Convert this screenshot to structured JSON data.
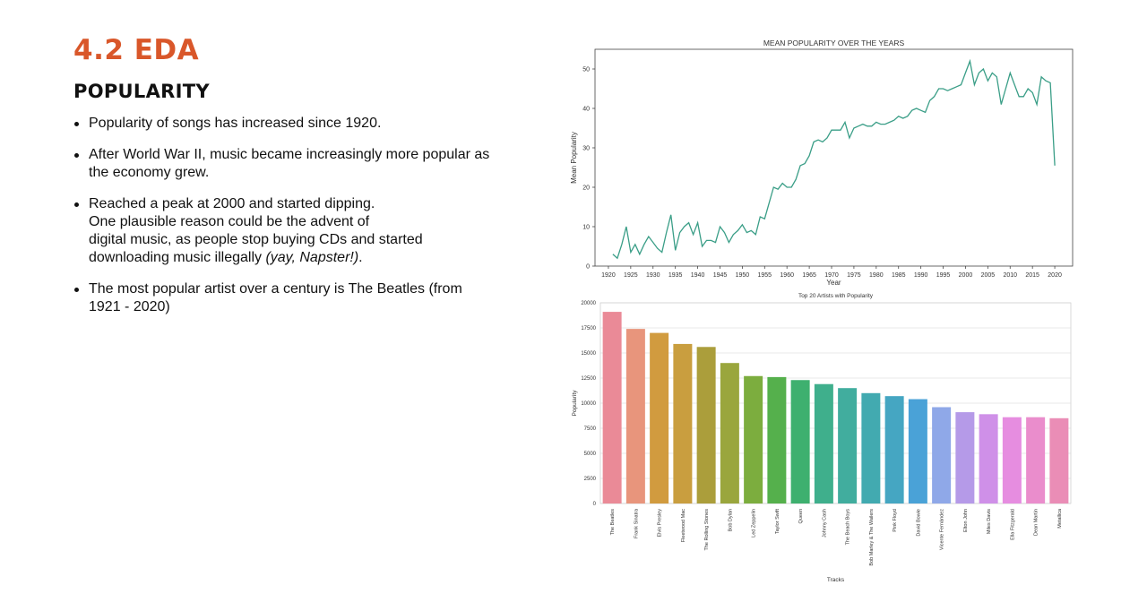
{
  "slide": {
    "heading": "4.2 EDA",
    "subheading": "POPULARITY",
    "bullets": {
      "b1": "Popularity of songs has increased since 1920.",
      "b2": "After World War II, music became increasingly more popular as the economy grew.",
      "b3_l1": "Reached a peak at 2000 and started dipping.",
      "b3_l2": "One plausible reason could be the advent of",
      "b3_l3": "digital music, as people stop buying CDs and started",
      "b3_l4a": "downloading music illegally ",
      "b3_l4b": "(yay, Napster!)",
      "b3_l4c": ".",
      "b4": "The most popular artist over a century is The Beatles (from 1921 - 2020)"
    }
  },
  "chart_data": [
    {
      "type": "line",
      "title": "MEAN POPULARITY OVER THE YEARS",
      "xlabel": "Year",
      "ylabel": "Mean Popularity",
      "xlim": [
        1917,
        2024
      ],
      "ylim": [
        0,
        55
      ],
      "xticks": [
        1920,
        1925,
        1930,
        1935,
        1940,
        1945,
        1950,
        1955,
        1960,
        1965,
        1970,
        1975,
        1980,
        1985,
        1990,
        1995,
        2000,
        2005,
        2010,
        2015,
        2020
      ],
      "yticks": [
        0,
        10,
        20,
        30,
        40,
        50
      ],
      "grid": false,
      "color": "#3a9e87",
      "x": [
        1921,
        1922,
        1923,
        1924,
        1925,
        1926,
        1927,
        1928,
        1929,
        1930,
        1931,
        1932,
        1933,
        1934,
        1935,
        1936,
        1937,
        1938,
        1939,
        1940,
        1941,
        1942,
        1943,
        1944,
        1945,
        1946,
        1947,
        1948,
        1949,
        1950,
        1951,
        1952,
        1953,
        1954,
        1955,
        1956,
        1957,
        1958,
        1959,
        1960,
        1961,
        1962,
        1963,
        1964,
        1965,
        1966,
        1967,
        1968,
        1969,
        1970,
        1971,
        1972,
        1973,
        1974,
        1975,
        1976,
        1977,
        1978,
        1979,
        1980,
        1981,
        1982,
        1983,
        1984,
        1985,
        1986,
        1987,
        1988,
        1989,
        1990,
        1991,
        1992,
        1993,
        1994,
        1995,
        1996,
        1997,
        1998,
        1999,
        2000,
        2001,
        2002,
        2003,
        2004,
        2005,
        2006,
        2007,
        2008,
        2009,
        2010,
        2011,
        2012,
        2013,
        2014,
        2015,
        2016,
        2017,
        2018,
        2019,
        2020
      ],
      "y": [
        3.0,
        2.0,
        5.5,
        10.0,
        3.5,
        5.5,
        3.0,
        5.5,
        7.5,
        6.0,
        4.5,
        3.5,
        8.5,
        13.0,
        4.0,
        8.5,
        10.0,
        11.0,
        8.0,
        11.0,
        5.0,
        6.5,
        6.5,
        6.0,
        10.0,
        8.5,
        6.0,
        8.0,
        9.0,
        10.5,
        8.5,
        9.0,
        8.0,
        12.5,
        12.0,
        16.0,
        20.0,
        19.5,
        21.0,
        20.0,
        20.0,
        22.0,
        25.5,
        26.0,
        28.0,
        31.5,
        32.0,
        31.5,
        32.5,
        34.5,
        34.5,
        34.5,
        36.5,
        32.5,
        35.0,
        35.5,
        36.0,
        35.5,
        35.5,
        36.5,
        36.0,
        36.0,
        36.5,
        37.0,
        38.0,
        37.5,
        38.0,
        39.5,
        40.0,
        39.5,
        39.0,
        42.0,
        43.0,
        45.0,
        45.0,
        44.5,
        45.0,
        45.5,
        46.0,
        49.0,
        52.0,
        46.0,
        49.0,
        50.0,
        47.0,
        49.0,
        48.0,
        41.0,
        45.0,
        49.0,
        46.0,
        43.0,
        43.0,
        45.0,
        44.0,
        41.0,
        48.0,
        47.0,
        46.5,
        25.5
      ]
    },
    {
      "type": "bar",
      "title": "Top 20 Artists with Popularity",
      "xlabel": "Tracks",
      "ylabel": "Popularity",
      "ylim": [
        0,
        20000
      ],
      "yticks": [
        0,
        2500,
        5000,
        7500,
        10000,
        12500,
        15000,
        17500,
        20000
      ],
      "grid": true,
      "categories": [
        "The Beatles",
        "Frank Sinatra",
        "Elvis Presley",
        "Fleetwood Mac",
        "The Rolling Stones",
        "Bob Dylan",
        "Led Zeppelin",
        "Taylor Swift",
        "Queen",
        "Johnny Cash",
        "The Beach Boys",
        "Bob Marley & The Wailers",
        "Pink Floyd",
        "David Bowie",
        "Vicente Fernández",
        "Elton John",
        "Miles Davis",
        "Ella Fitzgerald",
        "Dean Martin",
        "Metallica"
      ],
      "values": [
        19100,
        17400,
        17000,
        15900,
        15600,
        14000,
        12700,
        12600,
        12300,
        11900,
        11500,
        11000,
        10700,
        10400,
        9600,
        9100,
        8900,
        8600,
        8600,
        8500
      ],
      "colors": [
        "#ea8a97",
        "#e8957c",
        "#d19b3f",
        "#c99e3f",
        "#ab9e3b",
        "#9aa63d",
        "#7cad3e",
        "#55b04c",
        "#3eb06f",
        "#3faf8c",
        "#41ad9e",
        "#42aab0",
        "#45a6c2",
        "#4aa2d7",
        "#8fa8e8",
        "#b59ae8",
        "#cf90e8",
        "#e68de0",
        "#ea8dcc",
        "#ea8db6"
      ]
    }
  ]
}
